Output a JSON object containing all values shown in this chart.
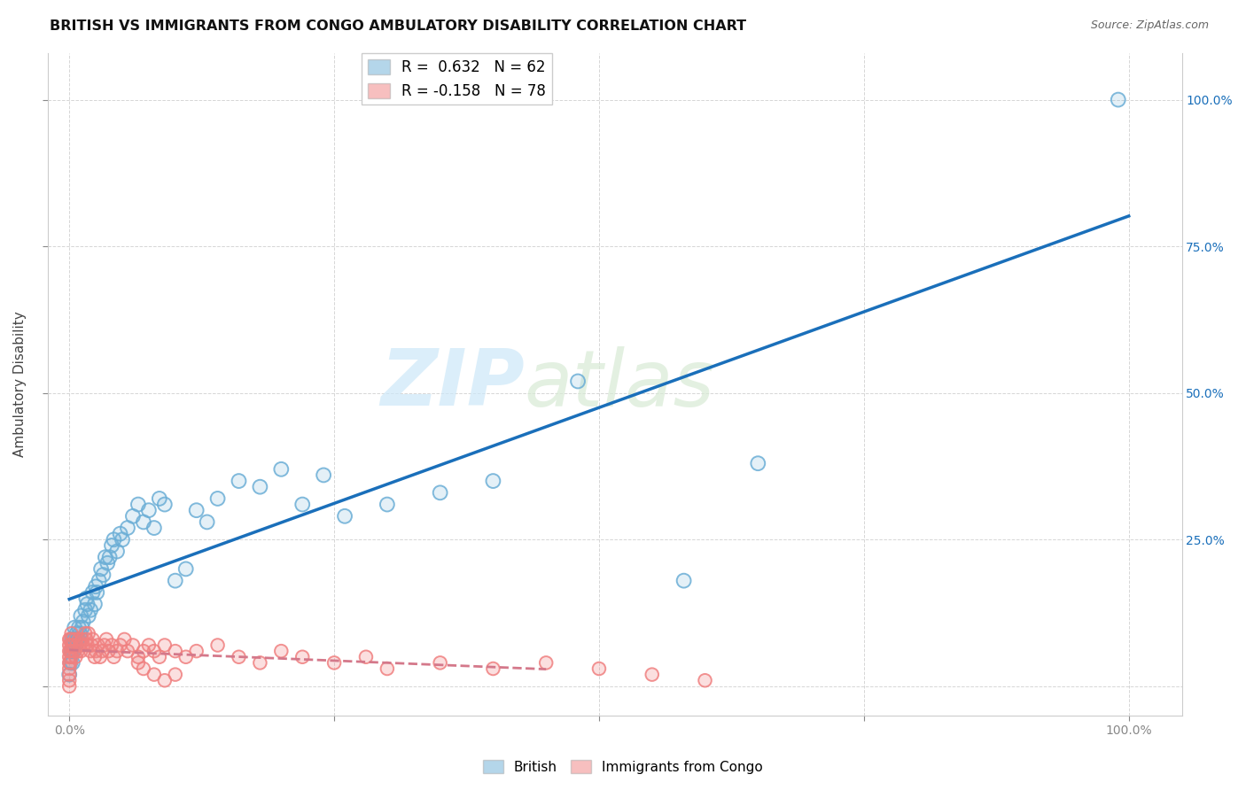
{
  "title": "BRITISH VS IMMIGRANTS FROM CONGO AMBULATORY DISABILITY CORRELATION CHART",
  "source": "Source: ZipAtlas.com",
  "ylabel": "Ambulatory Disability",
  "watermark_zip": "ZIP",
  "watermark_atlas": "atlas",
  "xlim": [
    -0.02,
    1.05
  ],
  "ylim": [
    -0.05,
    1.08
  ],
  "british_color": "#6baed6",
  "congo_color": "#f08080",
  "british_line_color": "#1a6fba",
  "congo_line_color": "#d4788a",
  "legend_R_british": "R =  0.632",
  "legend_N_british": "N = 62",
  "legend_R_congo": "R = -0.158",
  "legend_N_congo": "N = 78",
  "british_x": [
    0.0,
    0.001,
    0.002,
    0.003,
    0.003,
    0.004,
    0.005,
    0.005,
    0.006,
    0.007,
    0.008,
    0.009,
    0.01,
    0.011,
    0.012,
    0.013,
    0.015,
    0.016,
    0.017,
    0.018,
    0.02,
    0.022,
    0.024,
    0.025,
    0.026,
    0.028,
    0.03,
    0.032,
    0.034,
    0.036,
    0.038,
    0.04,
    0.042,
    0.045,
    0.048,
    0.05,
    0.055,
    0.06,
    0.065,
    0.07,
    0.075,
    0.08,
    0.085,
    0.09,
    0.1,
    0.11,
    0.12,
    0.13,
    0.14,
    0.16,
    0.18,
    0.2,
    0.22,
    0.24,
    0.26,
    0.3,
    0.35,
    0.4,
    0.48,
    0.58,
    0.65,
    0.99
  ],
  "british_y": [
    0.02,
    0.04,
    0.06,
    0.04,
    0.08,
    0.06,
    0.1,
    0.08,
    0.07,
    0.09,
    0.08,
    0.1,
    0.09,
    0.12,
    0.1,
    0.11,
    0.13,
    0.15,
    0.14,
    0.12,
    0.13,
    0.16,
    0.14,
    0.17,
    0.16,
    0.18,
    0.2,
    0.19,
    0.22,
    0.21,
    0.22,
    0.24,
    0.25,
    0.23,
    0.26,
    0.25,
    0.27,
    0.29,
    0.31,
    0.28,
    0.3,
    0.27,
    0.32,
    0.31,
    0.18,
    0.2,
    0.3,
    0.28,
    0.32,
    0.35,
    0.34,
    0.37,
    0.31,
    0.36,
    0.29,
    0.31,
    0.33,
    0.35,
    0.52,
    0.18,
    0.38,
    1.0
  ],
  "congo_x": [
    0.0,
    0.0,
    0.0,
    0.0,
    0.0,
    0.0,
    0.0,
    0.0,
    0.0,
    0.001,
    0.001,
    0.001,
    0.002,
    0.002,
    0.002,
    0.003,
    0.003,
    0.004,
    0.005,
    0.006,
    0.006,
    0.007,
    0.008,
    0.009,
    0.01,
    0.011,
    0.012,
    0.013,
    0.015,
    0.016,
    0.017,
    0.018,
    0.02,
    0.021,
    0.022,
    0.024,
    0.025,
    0.027,
    0.029,
    0.031,
    0.033,
    0.035,
    0.037,
    0.04,
    0.042,
    0.045,
    0.048,
    0.052,
    0.055,
    0.06,
    0.065,
    0.07,
    0.075,
    0.08,
    0.085,
    0.09,
    0.1,
    0.11,
    0.12,
    0.14,
    0.16,
    0.18,
    0.2,
    0.22,
    0.25,
    0.28,
    0.3,
    0.35,
    0.4,
    0.45,
    0.5,
    0.55,
    0.6,
    0.065,
    0.07,
    0.08,
    0.09,
    0.1
  ],
  "congo_y": [
    0.0,
    0.01,
    0.02,
    0.03,
    0.04,
    0.05,
    0.06,
    0.07,
    0.08,
    0.04,
    0.06,
    0.08,
    0.05,
    0.07,
    0.09,
    0.06,
    0.08,
    0.07,
    0.06,
    0.08,
    0.05,
    0.07,
    0.06,
    0.08,
    0.07,
    0.06,
    0.08,
    0.07,
    0.09,
    0.08,
    0.07,
    0.09,
    0.06,
    0.07,
    0.08,
    0.05,
    0.06,
    0.07,
    0.05,
    0.06,
    0.07,
    0.08,
    0.06,
    0.07,
    0.05,
    0.06,
    0.07,
    0.08,
    0.06,
    0.07,
    0.05,
    0.06,
    0.07,
    0.06,
    0.05,
    0.07,
    0.06,
    0.05,
    0.06,
    0.07,
    0.05,
    0.04,
    0.06,
    0.05,
    0.04,
    0.05,
    0.03,
    0.04,
    0.03,
    0.04,
    0.03,
    0.02,
    0.01,
    0.04,
    0.03,
    0.02,
    0.01,
    0.02
  ]
}
